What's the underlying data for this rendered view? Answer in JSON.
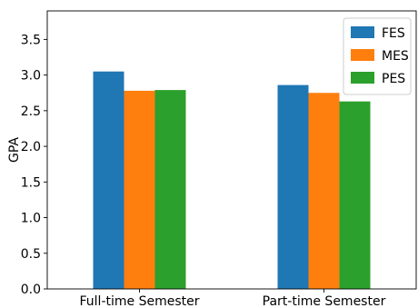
{
  "chart_data": {
    "type": "bar",
    "categories": [
      "Full-time Semester",
      "Part-time Semester"
    ],
    "series": [
      {
        "name": "FES",
        "values": [
          3.05,
          2.86
        ],
        "color": "#1f77b4"
      },
      {
        "name": "MES",
        "values": [
          2.78,
          2.75
        ],
        "color": "#ff7f0e"
      },
      {
        "name": "PES",
        "values": [
          2.79,
          2.63
        ],
        "color": "#2ca02c"
      }
    ],
    "xlabel": "",
    "ylabel": "GPA",
    "ylim": [
      0,
      3.9
    ],
    "yticks": [
      "0.0",
      "0.5",
      "1.0",
      "1.5",
      "2.0",
      "2.5",
      "3.0",
      "3.5"
    ],
    "grid": false,
    "legend_position": "top-right"
  }
}
